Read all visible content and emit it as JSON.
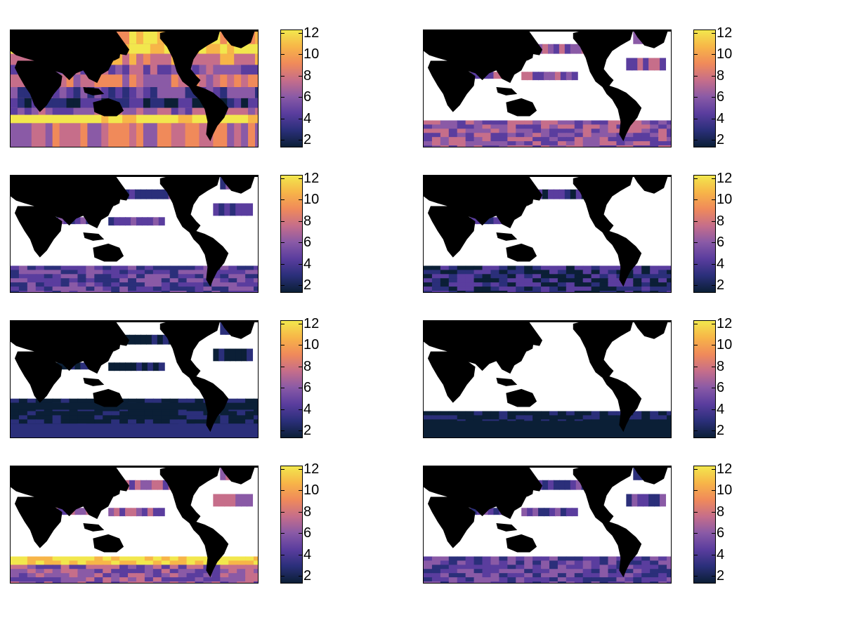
{
  "figure": {
    "layout": "4 rows x 2 columns of global ocean maps, each with a vertical colorbar"
  },
  "chart_data": {
    "type": "heatmap",
    "colormap": [
      "#0b1f36",
      "#2b2f7a",
      "#5a3d9e",
      "#8a5aa6",
      "#c66e8a",
      "#f08a5a",
      "#f7b548",
      "#f2e74d"
    ],
    "land_color": "#000000",
    "masked_color": "#ffffff",
    "colorbar": {
      "ticks": [
        "2",
        "4",
        "6",
        "8",
        "10",
        "12"
      ],
      "range": [
        1.3,
        12.3
      ]
    },
    "panels": [
      {
        "row": 1,
        "col": 1,
        "level": "high",
        "masked_ocean": false
      },
      {
        "row": 1,
        "col": 2,
        "level": "southern-ocean-high",
        "masked_ocean": true
      },
      {
        "row": 2,
        "col": 1,
        "level": "medium",
        "masked_ocean": true
      },
      {
        "row": 2,
        "col": 2,
        "level": "low",
        "masked_ocean": true
      },
      {
        "row": 3,
        "col": 1,
        "level": "very-low",
        "masked_ocean": true
      },
      {
        "row": 3,
        "col": 2,
        "level": "minimal",
        "masked_ocean": true
      },
      {
        "row": 4,
        "col": 1,
        "level": "medium-high",
        "masked_ocean": true
      },
      {
        "row": 4,
        "col": 2,
        "level": "low-medium",
        "masked_ocean": true
      }
    ]
  }
}
